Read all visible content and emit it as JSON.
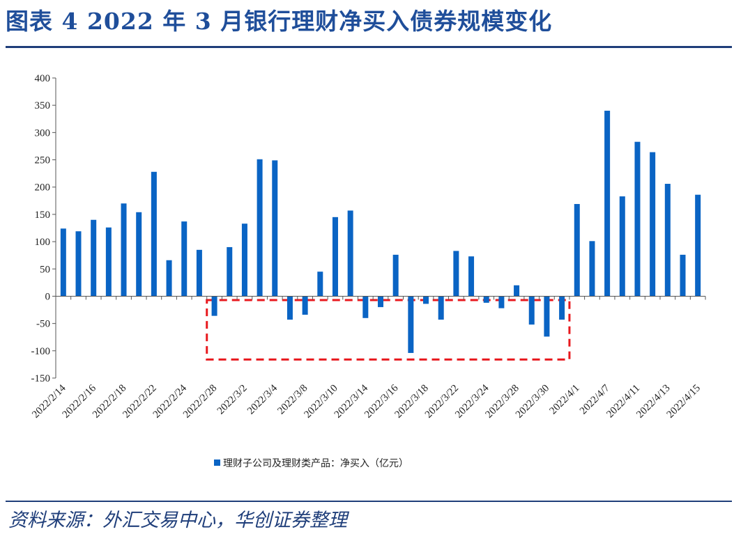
{
  "header": {
    "title": "图表 4 2022 年 3 月银行理财净买入债券规模变化"
  },
  "footer": {
    "source": "资料来源：外汇交易中心，华创证券整理"
  },
  "chart_data": {
    "type": "bar",
    "ylim": [
      -150,
      400
    ],
    "yticks": [
      400,
      350,
      300,
      250,
      200,
      150,
      100,
      50,
      0,
      -50,
      -100,
      -150
    ],
    "grid": false,
    "legend_position": "bottom",
    "bar_color": "#0A64C4",
    "highlight_color": "#E8191E",
    "series": [
      {
        "name": "理财子公司及理财类产品：净买入（亿元）",
        "values": [
          124,
          119,
          140,
          126,
          170,
          154,
          228,
          66,
          137,
          85,
          -36,
          90,
          133,
          251,
          249,
          -43,
          -34,
          45,
          145,
          157,
          -40,
          -20,
          76,
          -104,
          -14,
          -43,
          83,
          73,
          -12,
          -22,
          20,
          -52,
          -74,
          -43,
          169,
          101,
          340,
          183,
          283,
          264,
          206,
          76,
          186
        ]
      }
    ],
    "xtick_labels": [
      "2022/2/14",
      "2022/2/16",
      "2022/2/18",
      "2022/2/22",
      "2022/2/24",
      "2022/2/28",
      "2022/3/2",
      "2022/3/4",
      "2022/3/8",
      "2022/3/10",
      "2022/3/14",
      "2022/3/16",
      "2022/3/18",
      "2022/3/22",
      "2022/3/24",
      "2022/3/28",
      "2022/3/30",
      "2022/4/1",
      "2022/4/7",
      "2022/4/11",
      "2022/4/13",
      "2022/4/15"
    ],
    "highlight_box": {
      "from_index": 9.5,
      "to_index": 33.5,
      "y_top": -7,
      "y_bottom": -116
    }
  }
}
